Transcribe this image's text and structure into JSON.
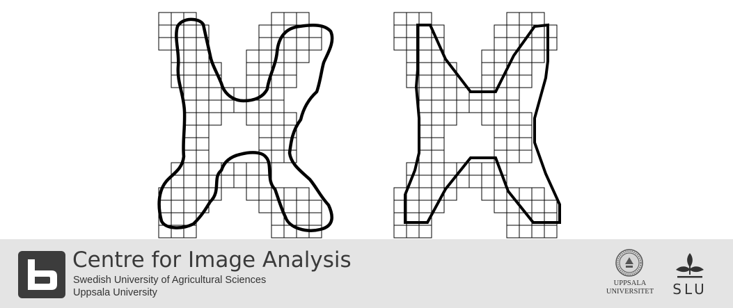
{
  "footer": {
    "centre_name": "Centre for Image Analysis",
    "affiliation_1": "Swedish University of Agricultural Sciences",
    "affiliation_2": "Uppsala University",
    "logo_icon": "b-letter-logo",
    "uu_icon": "uppsala-university-seal",
    "uu_line1": "UPPSALA",
    "uu_line2": "UNIVERSITET",
    "slu_icon": "slu-leaf-logo",
    "slu_label": "SLU"
  },
  "colors": {
    "grid": "#000000",
    "contour": "#000000",
    "footer_bg": "#e4e4e4",
    "logo_bg": "#3c3c3c"
  }
}
